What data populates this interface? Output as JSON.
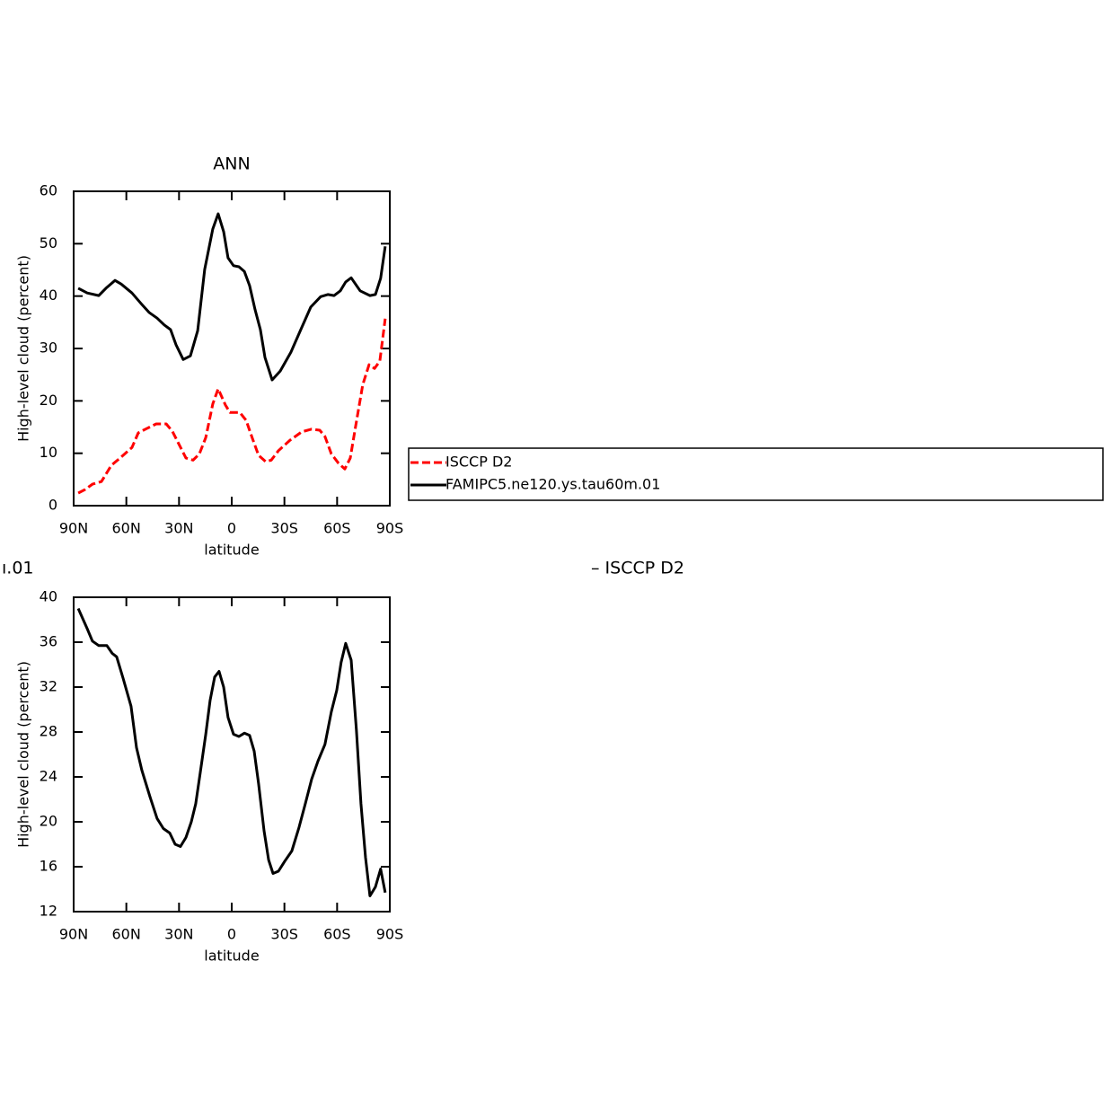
{
  "chart_data": [
    {
      "type": "line",
      "title": "ANN",
      "ylabel": "High-level cloud (percent)",
      "xlabel": "latitude",
      "xlim": [
        90,
        -90
      ],
      "xticks": [
        {
          "value": 90,
          "label": "90N"
        },
        {
          "value": 60,
          "label": "60N"
        },
        {
          "value": 30,
          "label": "30N"
        },
        0,
        {
          "value": -30,
          "label": "30S"
        },
        {
          "value": -60,
          "label": "60S"
        },
        {
          "value": -90,
          "label": "90S"
        }
      ],
      "ylim": [
        0,
        60
      ],
      "yticks": [
        0,
        10,
        20,
        30,
        40,
        50,
        60
      ],
      "legend": "right",
      "series": [
        {
          "name": "ISCCP D2",
          "color": "#ff0000",
          "dash": true,
          "x": [
            87.4,
            83.4,
            79.3,
            74.2,
            68.5,
            62.9,
            56.8,
            53.2,
            48.6,
            43.0,
            37.3,
            33.8,
            29.7,
            26.1,
            22.0,
            18.4,
            14.8,
            10.8,
            7.7,
            3.6,
            1.0,
            -4.6,
            -8.2,
            -11.7,
            -15.3,
            -19.4,
            -22.5,
            -26.6,
            -33.2,
            -39.9,
            -45.5,
            -50.1,
            -53.1,
            -56.7,
            -60.8,
            -64.4,
            -67.5,
            -70.5,
            -74.6,
            -78.2,
            -81.3,
            -84.3,
            -87.4
          ],
          "values": [
            2.4,
            3.1,
            4.1,
            4.6,
            7.7,
            9.3,
            11.1,
            13.9,
            14.7,
            15.6,
            15.6,
            14.2,
            11.5,
            9.1,
            8.7,
            9.9,
            13.0,
            19.4,
            22.3,
            19.2,
            17.8,
            17.8,
            16.3,
            12.9,
            9.6,
            8.4,
            8.7,
            10.5,
            12.5,
            14.1,
            14.6,
            14.4,
            13.2,
            9.9,
            8.1,
            7.0,
            9.1,
            15.1,
            23.1,
            26.9,
            26.2,
            27.6,
            35.7
          ]
        },
        {
          "name": "FAMIPC5.ne120.ys.tau60m.01",
          "color": "#000000",
          "dash": false,
          "x": [
            87.4,
            82.3,
            75.7,
            71.6,
            66.5,
            62.9,
            56.8,
            51.7,
            47.1,
            42.5,
            38.4,
            34.8,
            31.7,
            27.6,
            23.5,
            19.4,
            15.4,
            10.8,
            7.7,
            4.6,
            2.1,
            -1.0,
            -4.1,
            -7.2,
            -10.2,
            -13.3,
            -16.3,
            -18.9,
            -23.0,
            -27.6,
            -33.7,
            -39.3,
            -45.0,
            -50.6,
            -54.7,
            -58.3,
            -61.8,
            -64.9,
            -68.0,
            -73.1,
            -78.7,
            -81.8,
            -84.8,
            -87.4
          ],
          "values": [
            41.5,
            40.6,
            40.1,
            41.5,
            43.0,
            42.3,
            40.6,
            38.6,
            36.9,
            35.8,
            34.5,
            33.6,
            30.7,
            27.9,
            28.6,
            33.4,
            45.1,
            52.8,
            55.7,
            52.3,
            47.3,
            45.8,
            45.6,
            44.7,
            42.0,
            37.4,
            33.6,
            28.3,
            24.0,
            25.7,
            29.3,
            33.6,
            37.9,
            39.9,
            40.3,
            40.1,
            41.0,
            42.7,
            43.5,
            41.0,
            40.1,
            40.3,
            43.4,
            49.5
          ]
        }
      ]
    },
    {
      "type": "line",
      "title_fragments": [
        "ı.01",
        "– ISCCP D2"
      ],
      "ylabel": "High-level cloud (percent)",
      "xlabel": "latitude",
      "xlim": [
        90,
        -90
      ],
      "xticks": [
        {
          "value": 90,
          "label": "90N"
        },
        {
          "value": 60,
          "label": "60N"
        },
        {
          "value": 30,
          "label": "30N"
        },
        0,
        {
          "value": -30,
          "label": "30S"
        },
        {
          "value": -60,
          "label": "60S"
        },
        {
          "value": -90,
          "label": "90S"
        }
      ],
      "ylim": [
        12,
        40
      ],
      "yticks": [
        12,
        16,
        20,
        24,
        28,
        32,
        36,
        40
      ],
      "series": [
        {
          "color": "#000000",
          "dash": false,
          "x": [
            87.4,
            82.3,
            79.3,
            75.7,
            71.1,
            68.0,
            65.5,
            61.9,
            57.3,
            54.2,
            51.2,
            46.5,
            42.5,
            38.9,
            35.3,
            32.2,
            29.2,
            26.1,
            23.0,
            20.5,
            17.9,
            14.8,
            12.3,
            9.7,
            7.2,
            4.6,
            2.1,
            -1.0,
            -4.1,
            -7.2,
            -10.2,
            -12.8,
            -15.3,
            -18.4,
            -21.0,
            -23.5,
            -26.6,
            -30.2,
            -34.2,
            -38.3,
            -41.9,
            -45.5,
            -49.1,
            -53.1,
            -56.7,
            -59.8,
            -62.3,
            -64.9,
            -68.0,
            -71.0,
            -73.6,
            -76.2,
            -78.7,
            -81.8,
            -84.8,
            -87.4
          ],
          "values": [
            39.0,
            37.2,
            36.1,
            35.7,
            35.7,
            35.0,
            34.7,
            32.8,
            30.3,
            26.6,
            24.6,
            22.2,
            20.3,
            19.4,
            19.0,
            18.0,
            17.8,
            18.6,
            20.0,
            21.6,
            24.4,
            27.8,
            30.8,
            32.9,
            33.4,
            32.0,
            29.3,
            27.8,
            27.6,
            27.9,
            27.7,
            26.3,
            23.4,
            19.2,
            16.6,
            15.4,
            15.6,
            16.5,
            17.4,
            19.5,
            21.6,
            23.8,
            25.4,
            26.9,
            29.8,
            31.7,
            34.2,
            35.9,
            34.4,
            28.2,
            21.6,
            16.8,
            13.4,
            14.2,
            15.8,
            13.7
          ]
        }
      ]
    }
  ]
}
